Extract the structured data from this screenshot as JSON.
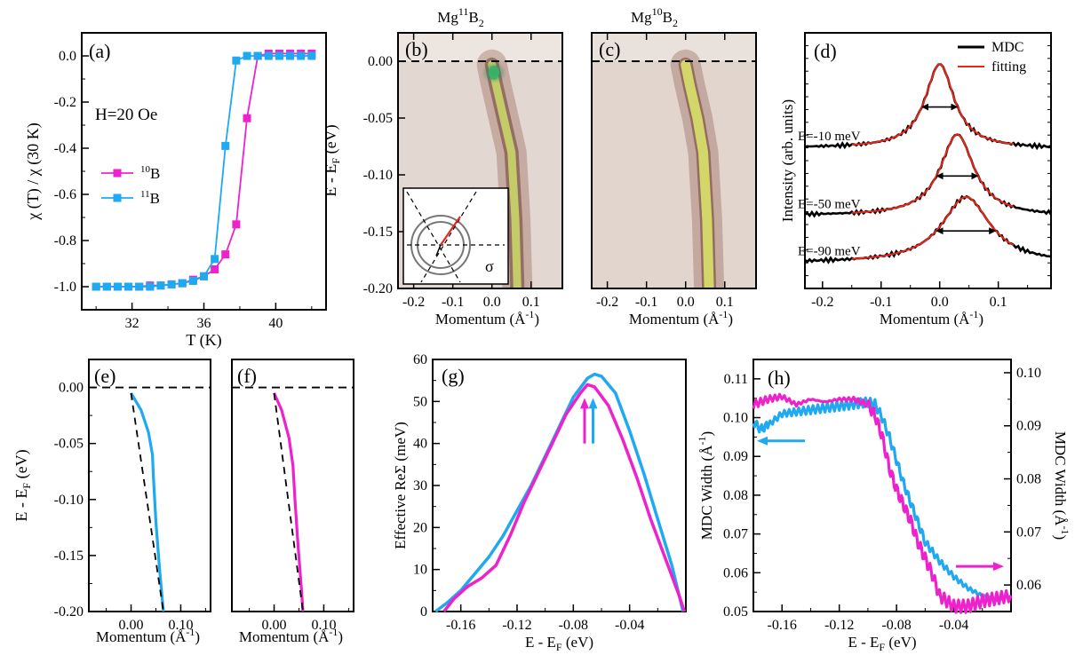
{
  "colors": {
    "b10": "#EE22CC",
    "b11": "#1EA9F0",
    "black": "#000000",
    "red": "#E8261A"
  },
  "panels": {
    "a": {
      "label": "(a)",
      "annotation": "H=20 Oe"
    },
    "b": {
      "label": "(b)",
      "title_base": "Mg",
      "title_sup": "11",
      "title_tail": "B",
      "title_sub": "2"
    },
    "c": {
      "label": "(c)",
      "title_base": "Mg",
      "title_sup": "10",
      "title_tail": "B",
      "title_sub": "2"
    },
    "d": {
      "label": "(d)"
    },
    "e": {
      "label": "(e)"
    },
    "f": {
      "label": "(f)"
    },
    "g": {
      "label": "(g)"
    },
    "h": {
      "label": "(h)"
    }
  },
  "chart_data": [
    {
      "id": "a",
      "type": "line",
      "xlabel": "T (K)",
      "ylabel": "χ (T) / χ (30 K)",
      "xlim": [
        29.2,
        42.8
      ],
      "ylim": [
        -1.1,
        0.1
      ],
      "xticks": [
        32,
        36,
        40
      ],
      "yticks": [
        0.0,
        -0.2,
        -0.4,
        -0.6,
        -0.8,
        -1.0
      ],
      "ytick_labels": [
        "0.0",
        "-0.2",
        "-0.4",
        "-0.6",
        "-0.8",
        "-1.0"
      ],
      "legend": {
        "placement": "left",
        "entries": [
          {
            "sup": "10",
            "text": "B",
            "series": "10B"
          },
          {
            "sup": "11",
            "text": "B",
            "series": "11B"
          }
        ]
      },
      "series": [
        {
          "name": "10B",
          "color": "#EE22CC",
          "x": [
            30.0,
            30.6,
            31.2,
            31.8,
            32.4,
            33.0,
            33.6,
            34.2,
            34.8,
            35.4,
            36.0,
            36.6,
            37.2,
            37.8,
            38.4,
            39.0,
            39.6,
            40.2,
            40.8,
            41.4,
            42.0
          ],
          "y": [
            -1.0,
            -1.0,
            -1.0,
            -1.0,
            -1.0,
            -0.995,
            -0.995,
            -0.99,
            -0.985,
            -0.97,
            -0.955,
            -0.925,
            -0.86,
            -0.73,
            -0.27,
            0.0,
            0.01,
            0.01,
            0.01,
            0.01,
            0.01
          ]
        },
        {
          "name": "11B",
          "color": "#1EA9F0",
          "x": [
            30.0,
            30.6,
            31.2,
            31.8,
            32.4,
            33.0,
            33.6,
            34.2,
            34.8,
            35.4,
            36.0,
            36.6,
            37.2,
            37.8,
            38.4,
            39.0,
            39.6,
            40.2,
            40.8,
            41.4,
            42.0
          ],
          "y": [
            -1.0,
            -1.0,
            -1.0,
            -1.0,
            -1.0,
            -1.0,
            -0.995,
            -0.99,
            -0.985,
            -0.975,
            -0.955,
            -0.88,
            -0.39,
            -0.02,
            0.0,
            0.0,
            0.0,
            0.0,
            0.0,
            0.0,
            0.0
          ]
        }
      ]
    },
    {
      "id": "b",
      "type": "heatmap",
      "xlabel": "Momentum (Å⁻¹)",
      "ylabel": "E - E_F (eV)",
      "xlim": [
        -0.24,
        0.18
      ],
      "ylim": [
        -0.2,
        0.025
      ],
      "xticks": [
        -0.2,
        -0.1,
        0.0,
        0.1
      ],
      "xtick_labels": [
        "-0.2",
        "-0.1",
        "0.0",
        "0.1"
      ],
      "yticks": [
        0.0,
        -0.05,
        -0.1,
        -0.15,
        -0.2
      ],
      "ytick_labels": [
        "0.00",
        "-0.05",
        "-0.10",
        "-0.15",
        "-0.20"
      ],
      "band": {
        "k": [
          0.0,
          0.01,
          0.03,
          0.05,
          0.06,
          0.065
        ],
        "E": [
          -0.003,
          -0.02,
          -0.05,
          -0.08,
          -0.14,
          -0.2
        ]
      },
      "inset_label": "σ"
    },
    {
      "id": "c",
      "type": "heatmap",
      "xlabel": "Momentum (Å⁻¹)",
      "xlim": [
        -0.24,
        0.18
      ],
      "ylim": [
        -0.2,
        0.025
      ],
      "xticks": [
        -0.2,
        -0.1,
        0.0,
        0.1
      ],
      "xtick_labels": [
        "-0.2",
        "-0.1",
        "0.0",
        "0.1"
      ],
      "band": {
        "k": [
          0.0,
          0.01,
          0.03,
          0.045,
          0.055,
          0.06
        ],
        "E": [
          -0.003,
          -0.02,
          -0.05,
          -0.08,
          -0.14,
          -0.2
        ]
      }
    },
    {
      "id": "d",
      "type": "line",
      "xlabel": "Momentum (Å⁻¹)",
      "ylabel": "Intensity (arb. units)",
      "xlim": [
        -0.23,
        0.19
      ],
      "xticks": [
        -0.2,
        -0.1,
        0.0,
        0.1
      ],
      "xtick_labels": [
        "-0.2",
        "-0.1",
        "0.0",
        "0.1"
      ],
      "legend": {
        "placement": "top-right",
        "entries": [
          "MDC",
          "fitting"
        ]
      },
      "curves": [
        {
          "label": "E=-10 meV",
          "center": 0.0,
          "width": 0.06
        },
        {
          "label": "E=-50 meV",
          "center": 0.03,
          "width": 0.07
        },
        {
          "label": "E=-90 meV",
          "center": 0.045,
          "width": 0.1
        }
      ]
    },
    {
      "id": "e",
      "type": "line",
      "xlabel": "Momentum (Å⁻¹)",
      "ylabel": "E - E_F (eV)",
      "xlim": [
        -0.085,
        0.16
      ],
      "ylim": [
        -0.2,
        0.025
      ],
      "xticks": [
        0.0,
        0.1
      ],
      "xtick_labels": [
        "0.00",
        "0.10"
      ],
      "yticks": [
        0.0,
        -0.05,
        -0.1,
        -0.15,
        -0.2
      ],
      "ytick_labels": [
        "0.00",
        "-0.05",
        "-0.10",
        "-0.15",
        "-0.20"
      ],
      "series": [
        {
          "name": "11B",
          "color": "#1EA9F0",
          "k": [
            0.0,
            0.02,
            0.035,
            0.043,
            0.045,
            0.05,
            0.057,
            0.065
          ],
          "E": [
            -0.005,
            -0.02,
            -0.04,
            -0.06,
            -0.08,
            -0.12,
            -0.16,
            -0.2
          ]
        },
        {
          "name": "bare",
          "style": "dashed",
          "k": [
            0.0,
            0.065
          ],
          "E": [
            -0.005,
            -0.2
          ]
        }
      ]
    },
    {
      "id": "f",
      "type": "line",
      "xlabel": "Momentum (Å⁻¹)",
      "xlim": [
        -0.085,
        0.16
      ],
      "ylim": [
        -0.2,
        0.025
      ],
      "xticks": [
        0.0,
        0.1
      ],
      "xtick_labels": [
        "0.00",
        "0.10"
      ],
      "series": [
        {
          "name": "10B",
          "color": "#EE22CC",
          "k": [
            0.0,
            0.015,
            0.03,
            0.038,
            0.042,
            0.048,
            0.055,
            0.058
          ],
          "E": [
            -0.005,
            -0.02,
            -0.045,
            -0.07,
            -0.1,
            -0.14,
            -0.18,
            -0.2
          ]
        },
        {
          "name": "bare",
          "style": "dashed",
          "k": [
            0.0,
            0.058
          ],
          "E": [
            -0.005,
            -0.2
          ]
        }
      ]
    },
    {
      "id": "g",
      "type": "line",
      "xlabel": "E - E_F (eV)",
      "ylabel": "Effective ReΣ (meV)",
      "xlim": [
        -0.18,
        0.0
      ],
      "ylim": [
        0,
        60
      ],
      "xticks": [
        -0.16,
        -0.12,
        -0.08,
        -0.04
      ],
      "xtick_labels": [
        "-0.16",
        "-0.12",
        "-0.08",
        "-0.04"
      ],
      "yticks": [
        0,
        10,
        20,
        30,
        40,
        50,
        60
      ],
      "ytick_labels": [
        "0",
        "10",
        "20",
        "30",
        "40",
        "50",
        "60"
      ],
      "series": [
        {
          "name": "11B",
          "color": "#1EA9F0",
          "x": [
            -0.178,
            -0.17,
            -0.16,
            -0.15,
            -0.14,
            -0.13,
            -0.12,
            -0.11,
            -0.1,
            -0.09,
            -0.08,
            -0.07,
            -0.065,
            -0.06,
            -0.05,
            -0.04,
            -0.03,
            -0.02,
            -0.01,
            -0.002
          ],
          "y": [
            0,
            2,
            5,
            9,
            13,
            18,
            24,
            30,
            37,
            44,
            51,
            55.5,
            56.5,
            56,
            52,
            43,
            33,
            22,
            11,
            0
          ]
        },
        {
          "name": "10B",
          "color": "#EE22CC",
          "x": [
            -0.172,
            -0.165,
            -0.155,
            -0.145,
            -0.135,
            -0.125,
            -0.115,
            -0.105,
            -0.095,
            -0.085,
            -0.075,
            -0.07,
            -0.065,
            -0.055,
            -0.045,
            -0.035,
            -0.025,
            -0.015,
            -0.005,
            -0.001
          ],
          "y": [
            0,
            3,
            6,
            8,
            11,
            18,
            26,
            33,
            40,
            47,
            52,
            54,
            53.5,
            49,
            41,
            32,
            22,
            13,
            4,
            0
          ]
        }
      ],
      "markers": [
        {
          "series": "10B",
          "x": -0.072,
          "direction": "up"
        },
        {
          "series": "11B",
          "x": -0.066,
          "direction": "up"
        }
      ]
    },
    {
      "id": "h",
      "type": "line",
      "xlabel": "E - E_F (eV)",
      "ylabel": "MDC Width (Å⁻¹)",
      "ylabel_right": "MDC Width (Å⁻¹)",
      "xlim": [
        -0.18,
        0.0
      ],
      "ylim": [
        0.05,
        0.115
      ],
      "ylim_right": [
        0.055,
        0.1025
      ],
      "xticks": [
        -0.16,
        -0.12,
        -0.08,
        -0.04
      ],
      "xtick_labels": [
        "-0.16",
        "-0.12",
        "-0.08",
        "-0.04"
      ],
      "yticks": [
        0.05,
        0.06,
        0.07,
        0.08,
        0.09,
        0.1,
        0.11
      ],
      "ytick_labels": [
        "0.05",
        "0.06",
        "0.07",
        "0.08",
        "0.09",
        "0.10",
        "0.11"
      ],
      "yticks_right": [
        0.06,
        0.07,
        0.08,
        0.09,
        0.1
      ],
      "ytick_labels_right": [
        "0.06",
        "0.07",
        "0.08",
        "0.09",
        "0.10"
      ],
      "series": [
        {
          "name": "11B",
          "color": "#1EA9F0",
          "axis": "left",
          "x": [
            -0.18,
            -0.175,
            -0.17,
            -0.16,
            -0.15,
            -0.14,
            -0.13,
            -0.12,
            -0.11,
            -0.1,
            -0.095,
            -0.09,
            -0.085,
            -0.08,
            -0.075,
            -0.07,
            -0.065,
            -0.06,
            -0.05,
            -0.04,
            -0.03,
            -0.02,
            -0.01,
            0.0
          ],
          "y": [
            0.099,
            0.097,
            0.098,
            0.101,
            0.1015,
            0.102,
            0.1025,
            0.103,
            0.1035,
            0.104,
            0.1035,
            0.1,
            0.095,
            0.089,
            0.083,
            0.078,
            0.073,
            0.068,
            0.063,
            0.059,
            0.056,
            0.054,
            0.053,
            0.054
          ]
        },
        {
          "name": "10B",
          "color": "#EE22CC",
          "axis": "right",
          "x": [
            -0.18,
            -0.17,
            -0.16,
            -0.15,
            -0.14,
            -0.13,
            -0.12,
            -0.11,
            -0.1,
            -0.095,
            -0.09,
            -0.085,
            -0.08,
            -0.075,
            -0.07,
            -0.065,
            -0.06,
            -0.055,
            -0.05,
            -0.04,
            -0.03,
            -0.02,
            -0.01,
            0.0
          ],
          "y": [
            0.094,
            0.095,
            0.0955,
            0.094,
            0.095,
            0.0945,
            0.095,
            0.095,
            0.094,
            0.092,
            0.088,
            0.082,
            0.078,
            0.075,
            0.072,
            0.068,
            0.065,
            0.062,
            0.058,
            0.056,
            0.056,
            0.057,
            0.0575,
            0.058
          ]
        }
      ],
      "axis_arrows": [
        {
          "series": "11B",
          "points_to": "left"
        },
        {
          "series": "10B",
          "points_to": "right"
        }
      ]
    }
  ]
}
